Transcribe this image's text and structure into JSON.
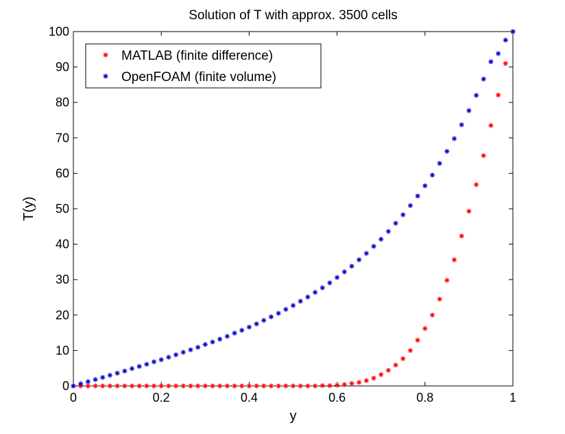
{
  "chart_data": {
    "type": "scatter",
    "title": "Solution of T with approx. 3500 cells",
    "xlabel": "y",
    "ylabel": "T(y)",
    "xlim": [
      0,
      1
    ],
    "ylim": [
      0,
      100
    ],
    "xticks": [
      "0",
      "0.2",
      "0.4",
      "0.6",
      "0.8",
      "1"
    ],
    "yticks": [
      "0",
      "10",
      "20",
      "30",
      "40",
      "50",
      "60",
      "70",
      "80",
      "90",
      "100"
    ],
    "grid": false,
    "legend_position": "top-left",
    "series": [
      {
        "name": "MATLAB (finite difference)",
        "color": "#ff0000",
        "marker": "asterisk",
        "points": [
          [
            0.0,
            0.0
          ],
          [
            0.0167,
            0.0
          ],
          [
            0.0333,
            0.0
          ],
          [
            0.05,
            0.0
          ],
          [
            0.0667,
            0.0
          ],
          [
            0.0833,
            0.0
          ],
          [
            0.1,
            0.0
          ],
          [
            0.1167,
            0.0
          ],
          [
            0.1333,
            0.0
          ],
          [
            0.15,
            0.0
          ],
          [
            0.1667,
            0.0
          ],
          [
            0.1833,
            0.0
          ],
          [
            0.2,
            0.0
          ],
          [
            0.2167,
            0.0
          ],
          [
            0.2333,
            0.0
          ],
          [
            0.25,
            0.0
          ],
          [
            0.2667,
            0.0
          ],
          [
            0.2833,
            0.0
          ],
          [
            0.3,
            0.0
          ],
          [
            0.3167,
            0.0
          ],
          [
            0.3333,
            0.0
          ],
          [
            0.35,
            0.0
          ],
          [
            0.3667,
            0.0
          ],
          [
            0.3833,
            0.0
          ],
          [
            0.4,
            0.0
          ],
          [
            0.4167,
            0.0
          ],
          [
            0.4333,
            0.0
          ],
          [
            0.45,
            0.0
          ],
          [
            0.4667,
            0.0
          ],
          [
            0.4833,
            0.0
          ],
          [
            0.5,
            0.0
          ],
          [
            0.5167,
            0.0
          ],
          [
            0.5333,
            0.0
          ],
          [
            0.55,
            0.0
          ],
          [
            0.5667,
            0.1
          ],
          [
            0.5833,
            0.1
          ],
          [
            0.6,
            0.2
          ],
          [
            0.6167,
            0.4
          ],
          [
            0.6333,
            0.7
          ],
          [
            0.65,
            1.0
          ],
          [
            0.6667,
            1.5
          ],
          [
            0.6833,
            2.2
          ],
          [
            0.7,
            3.2
          ],
          [
            0.7167,
            4.4
          ],
          [
            0.7333,
            5.9
          ],
          [
            0.75,
            7.7
          ],
          [
            0.7667,
            10.0
          ],
          [
            0.7833,
            12.9
          ],
          [
            0.8,
            16.2
          ],
          [
            0.8167,
            20.0
          ],
          [
            0.8333,
            24.5
          ],
          [
            0.85,
            29.8
          ],
          [
            0.8667,
            35.6
          ],
          [
            0.8833,
            42.3
          ],
          [
            0.9,
            49.3
          ],
          [
            0.9167,
            56.8
          ],
          [
            0.9333,
            65.0
          ],
          [
            0.95,
            73.5
          ],
          [
            0.9667,
            82.1
          ],
          [
            0.9833,
            91.0
          ],
          [
            1.0,
            100.0
          ]
        ]
      },
      {
        "name": "OpenFOAM (finite volume)",
        "color": "#0000cc",
        "marker": "asterisk",
        "points": [
          [
            0.0,
            0.0
          ],
          [
            0.0167,
            0.6
          ],
          [
            0.0333,
            1.2
          ],
          [
            0.05,
            1.8
          ],
          [
            0.0667,
            2.4
          ],
          [
            0.0833,
            3.0
          ],
          [
            0.1,
            3.6
          ],
          [
            0.1167,
            4.2
          ],
          [
            0.1333,
            4.9
          ],
          [
            0.15,
            5.5
          ],
          [
            0.1667,
            6.1
          ],
          [
            0.1833,
            6.8
          ],
          [
            0.2,
            7.4
          ],
          [
            0.2167,
            8.1
          ],
          [
            0.2333,
            8.8
          ],
          [
            0.25,
            9.5
          ],
          [
            0.2667,
            10.2
          ],
          [
            0.2833,
            10.9
          ],
          [
            0.3,
            11.7
          ],
          [
            0.3167,
            12.4
          ],
          [
            0.3333,
            13.2
          ],
          [
            0.35,
            14.0
          ],
          [
            0.3667,
            14.9
          ],
          [
            0.3833,
            15.7
          ],
          [
            0.4,
            16.6
          ],
          [
            0.4167,
            17.5
          ],
          [
            0.4333,
            18.5
          ],
          [
            0.45,
            19.5
          ],
          [
            0.4667,
            20.5
          ],
          [
            0.4833,
            21.6
          ],
          [
            0.5,
            22.7
          ],
          [
            0.5167,
            23.9
          ],
          [
            0.5333,
            25.1
          ],
          [
            0.55,
            26.4
          ],
          [
            0.5667,
            27.7
          ],
          [
            0.5833,
            29.1
          ],
          [
            0.6,
            30.6
          ],
          [
            0.6167,
            32.2
          ],
          [
            0.6333,
            33.8
          ],
          [
            0.65,
            35.6
          ],
          [
            0.6667,
            37.4
          ],
          [
            0.6833,
            39.4
          ],
          [
            0.7,
            41.4
          ],
          [
            0.7167,
            43.6
          ],
          [
            0.7333,
            45.9
          ],
          [
            0.75,
            48.3
          ],
          [
            0.7667,
            50.9
          ],
          [
            0.7833,
            53.6
          ],
          [
            0.8,
            56.5
          ],
          [
            0.8167,
            59.5
          ],
          [
            0.8333,
            62.8
          ],
          [
            0.85,
            66.2
          ],
          [
            0.8667,
            69.8
          ],
          [
            0.8833,
            73.7
          ],
          [
            0.9,
            77.7
          ],
          [
            0.9167,
            82.0
          ],
          [
            0.9333,
            86.6
          ],
          [
            0.95,
            91.5
          ],
          [
            0.9667,
            93.8
          ],
          [
            0.9833,
            97.6
          ],
          [
            1.0,
            100.0
          ]
        ]
      }
    ]
  }
}
